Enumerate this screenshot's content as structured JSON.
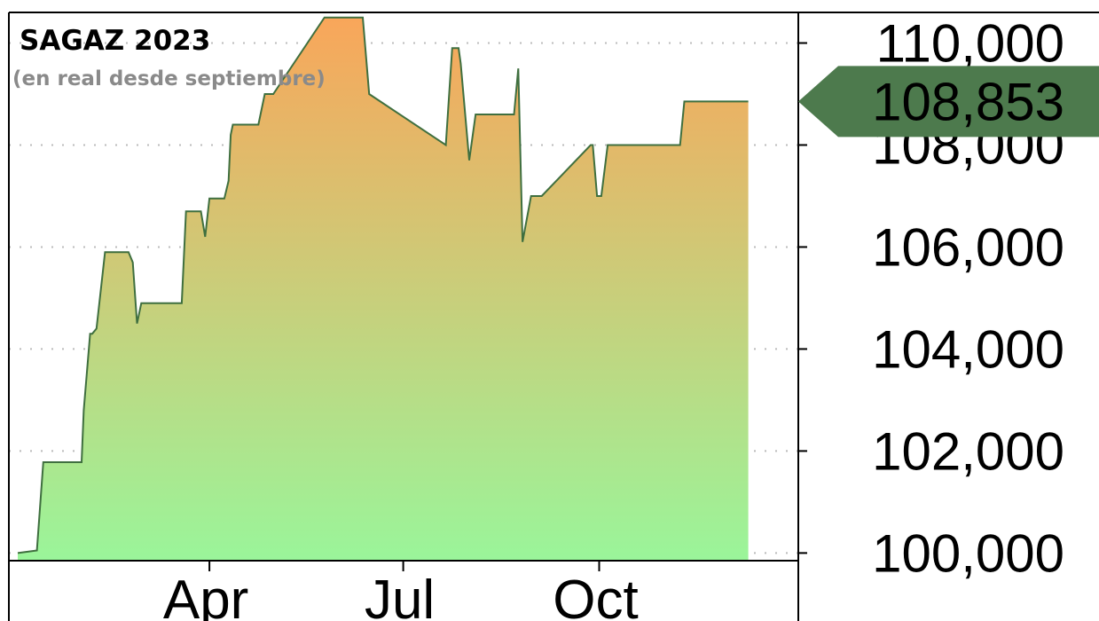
{
  "colors": {
    "line": "#3f6f3f",
    "fill_top": "#f9a65a",
    "fill_bottom": "#9af59a",
    "marker": "#4d7a4d",
    "grid": "#bbbbbb",
    "frame": "#000000"
  },
  "chart_data": {
    "type": "area",
    "title": "SAGAZ 2023",
    "subtitle": "(en real desde septiembre)",
    "xlabel": "",
    "ylabel": "",
    "ylim": [
      99850,
      110600
    ],
    "xlim": [
      "2023-01-01",
      "2023-12-31"
    ],
    "x_ticks": [
      {
        "date": "2023-04-01",
        "label": "Apr"
      },
      {
        "date": "2023-07-01",
        "label": "Jul"
      },
      {
        "date": "2023-10-01",
        "label": "Oct"
      }
    ],
    "y_ticks": [
      {
        "value": 100000,
        "label": "100,000"
      },
      {
        "value": 102000,
        "label": "102,000"
      },
      {
        "value": 104000,
        "label": "104,000"
      },
      {
        "value": 106000,
        "label": "106,000"
      },
      {
        "value": 108000,
        "label": "108,000"
      },
      {
        "value": 110000,
        "label": "110,000"
      }
    ],
    "grid": "horizontal dotted",
    "last_value": {
      "value": 108853,
      "label": "108,853"
    },
    "series": [
      {
        "x": [
          "2023-01-01",
          "2023-01-10",
          "2023-01-13",
          "2023-01-14",
          "2023-01-31",
          "2023-02-01",
          "2023-02-04",
          "2023-02-05",
          "2023-02-07",
          "2023-02-11",
          "2023-02-22",
          "2023-02-24",
          "2023-02-26",
          "2023-02-28",
          "2023-03-19",
          "2023-03-21",
          "2023-03-28",
          "2023-03-30",
          "2023-04-01",
          "2023-04-08",
          "2023-04-10",
          "2023-04-11",
          "2023-04-12",
          "2023-04-24",
          "2023-04-27",
          "2023-05-01",
          "2023-05-25",
          "2023-05-27",
          "2023-06-12",
          "2023-06-15",
          "2023-07-21",
          "2023-07-24",
          "2023-07-27",
          "2023-07-28",
          "2023-08-01",
          "2023-08-04",
          "2023-08-22",
          "2023-08-24",
          "2023-08-26",
          "2023-08-30",
          "2023-09-01",
          "2023-09-04",
          "2023-09-27",
          "2023-09-28",
          "2023-09-30",
          "2023-10-02",
          "2023-10-05",
          "2023-11-08",
          "2023-11-10",
          "2023-12-02",
          "2023-12-04",
          "2023-12-06",
          "2023-12-10"
        ],
        "y": [
          100000,
          100050,
          101780,
          101780,
          101780,
          102800,
          104300,
          104300,
          104400,
          105900,
          105900,
          105700,
          104500,
          104900,
          104900,
          106700,
          106700,
          106200,
          106950,
          106950,
          107300,
          108200,
          108400,
          108400,
          109000,
          109000,
          110500,
          110500,
          110500,
          109000,
          108000,
          109900,
          109900,
          109600,
          107700,
          108600,
          108600,
          109500,
          106100,
          107000,
          107000,
          107000,
          108000,
          108000,
          107000,
          107000,
          108000,
          108000,
          108853,
          108853,
          108853,
          108853,
          108853
        ]
      }
    ]
  }
}
